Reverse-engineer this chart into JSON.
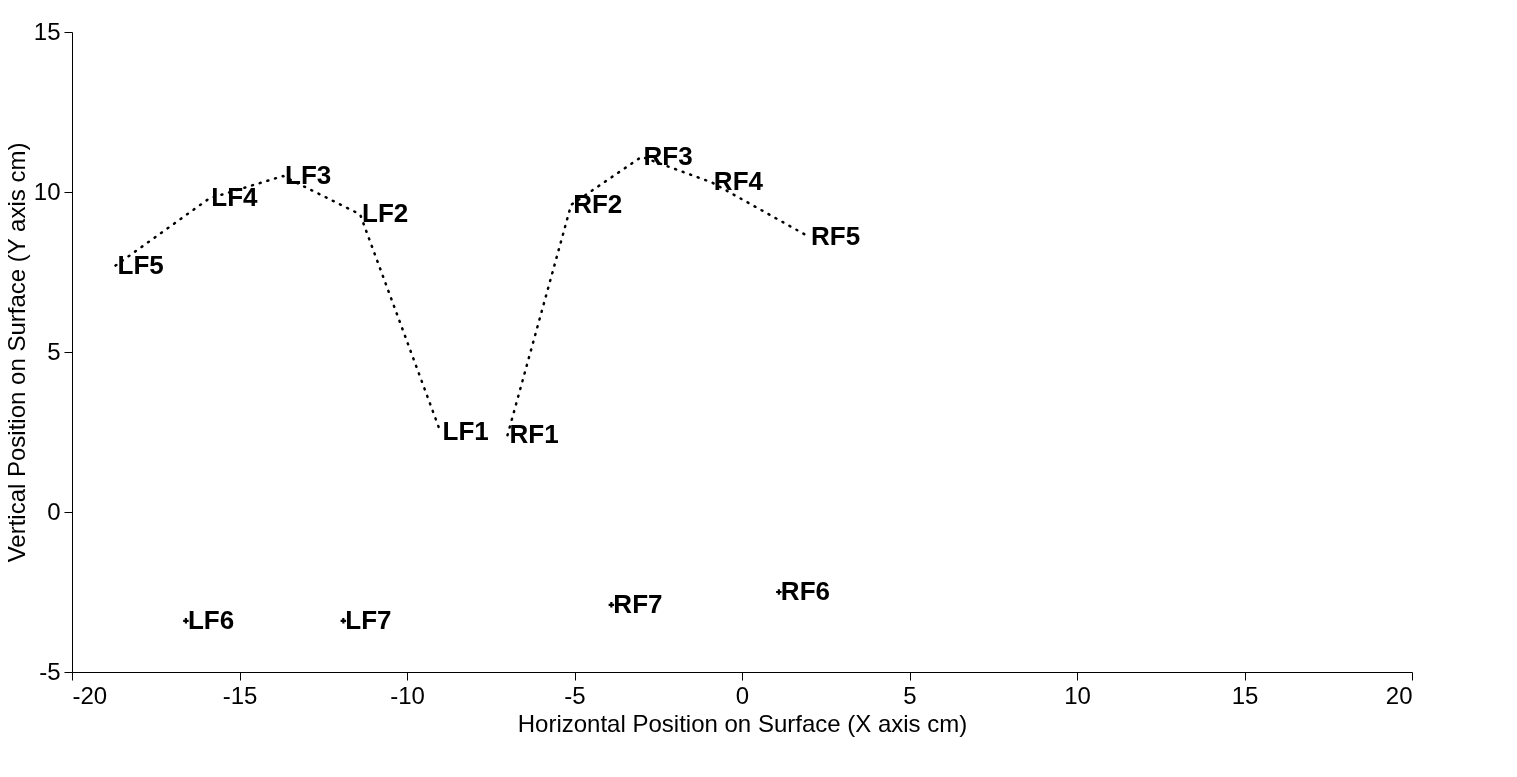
{
  "chart_data": {
    "type": "line",
    "xlabel": "Horizontal Position on Surface (X axis cm)",
    "ylabel": "Vertical Position on Surface (Y axis cm)",
    "xlim": [
      -20,
      20
    ],
    "xticks": [
      -20,
      -15,
      -10,
      -5,
      0,
      5,
      10,
      15,
      20
    ],
    "ylim": [
      -5,
      15
    ],
    "yticks": [
      -5,
      0,
      5,
      10,
      15
    ],
    "grid": false,
    "marker": "none",
    "line_style": "dotted",
    "series": [
      {
        "color": "#000000",
        "x": [
          -18.7,
          -15.9,
          -13.7,
          -11.4,
          -9.0
        ],
        "values": [
          7.7,
          9.8,
          10.5,
          9.3,
          2.5
        ]
      },
      {
        "color": "#000000",
        "x": [
          -7.0,
          -5.1,
          -3.0,
          -0.9,
          2.0
        ],
        "values": [
          2.4,
          9.6,
          11.1,
          10.3,
          8.6
        ]
      },
      {
        "type": "scatter",
        "marker": "cross",
        "color": "#000000",
        "x": [
          -16.6,
          -11.9,
          -3.9,
          1.1
        ],
        "values": [
          -3.4,
          -3.4,
          -2.9,
          -2.5
        ]
      }
    ],
    "annotations": [
      {
        "text": "LF5",
        "x": -18.7,
        "y": 7.7
      },
      {
        "text": "LF4",
        "x": -15.9,
        "y": 9.8
      },
      {
        "text": "LF3",
        "x": -13.7,
        "y": 10.5
      },
      {
        "text": "LF2",
        "x": -11.4,
        "y": 9.3
      },
      {
        "text": "LF1",
        "x": -9.0,
        "y": 2.5
      },
      {
        "text": "RF1",
        "x": -7.0,
        "y": 2.4
      },
      {
        "text": "RF2",
        "x": -5.1,
        "y": 9.6
      },
      {
        "text": "RF3",
        "x": -3.0,
        "y": 11.1
      },
      {
        "text": "RF4",
        "x": -0.9,
        "y": 10.3
      },
      {
        "text": "RF5",
        "x": 2.0,
        "y": 8.6
      },
      {
        "text": "LF6",
        "x": -16.6,
        "y": -3.4
      },
      {
        "text": "LF7",
        "x": -11.9,
        "y": -3.4
      },
      {
        "text": "RF7",
        "x": -3.9,
        "y": -2.9
      },
      {
        "text": "RF6",
        "x": 1.1,
        "y": -2.5
      }
    ]
  }
}
